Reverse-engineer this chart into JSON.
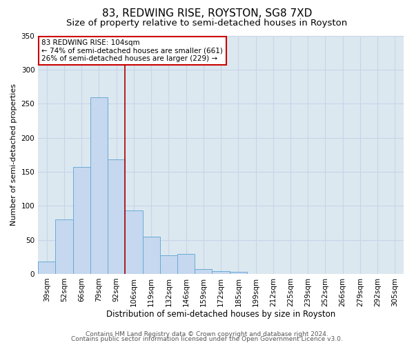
{
  "title": "83, REDWING RISE, ROYSTON, SG8 7XD",
  "subtitle": "Size of property relative to semi-detached houses in Royston",
  "xlabel": "Distribution of semi-detached houses by size in Royston",
  "ylabel": "Number of semi-detached properties",
  "bar_labels": [
    "39sqm",
    "52sqm",
    "66sqm",
    "79sqm",
    "92sqm",
    "106sqm",
    "119sqm",
    "132sqm",
    "146sqm",
    "159sqm",
    "172sqm",
    "185sqm",
    "199sqm",
    "212sqm",
    "225sqm",
    "239sqm",
    "252sqm",
    "266sqm",
    "279sqm",
    "292sqm",
    "305sqm"
  ],
  "bar_values": [
    18,
    80,
    157,
    259,
    168,
    93,
    55,
    27,
    29,
    7,
    4,
    3,
    0,
    0,
    0,
    0,
    0,
    0,
    0,
    0,
    0
  ],
  "bar_color": "#c5d8ef",
  "bar_edge_color": "#6aaad4",
  "marker_bin_index": 5,
  "annotation_title": "83 REDWING RISE: 104sqm",
  "annotation_line1": "← 74% of semi-detached houses are smaller (661)",
  "annotation_line2": "26% of semi-detached houses are larger (229) →",
  "annotation_box_color": "#ffffff",
  "annotation_box_edge": "#cc0000",
  "marker_line_color": "#aa0000",
  "ylim": [
    0,
    350
  ],
  "yticks": [
    0,
    50,
    100,
    150,
    200,
    250,
    300,
    350
  ],
  "grid_color": "#c8d4e8",
  "background_color": "#dce8f0",
  "footer_line1": "Contains HM Land Registry data © Crown copyright and database right 2024.",
  "footer_line2": "Contains public sector information licensed under the Open Government Licence v3.0.",
  "title_fontsize": 11,
  "subtitle_fontsize": 9.5,
  "xlabel_fontsize": 8.5,
  "ylabel_fontsize": 8,
  "tick_fontsize": 7.5,
  "annotation_fontsize": 7.5,
  "footer_fontsize": 6.5
}
